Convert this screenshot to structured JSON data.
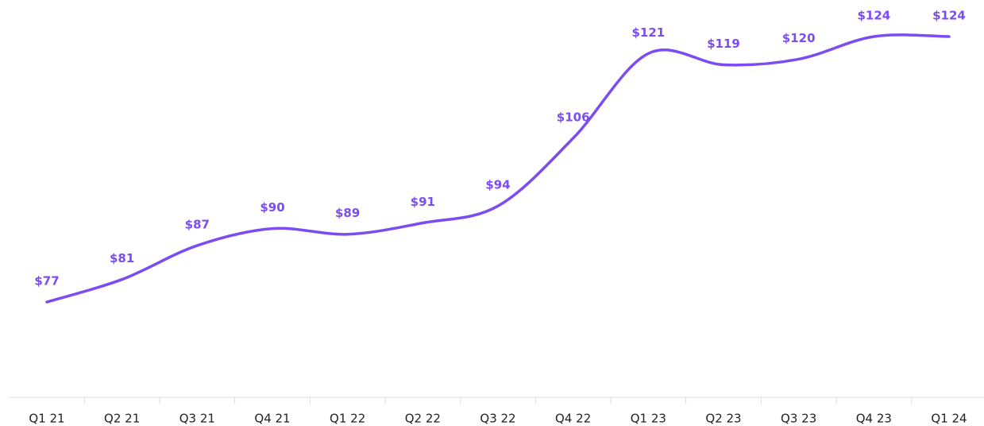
{
  "chart_data": {
    "type": "line",
    "categories": [
      "Q1 21",
      "Q2 21",
      "Q3 21",
      "Q4 21",
      "Q1 22",
      "Q2 22",
      "Q3 22",
      "Q4 22",
      "Q1 23",
      "Q2 23",
      "Q3 23",
      "Q4 23",
      "Q1 24"
    ],
    "values": [
      77,
      81,
      87,
      90,
      89,
      91,
      94,
      106,
      121,
      119,
      120,
      124,
      124
    ],
    "value_labels": [
      "$77",
      "$81",
      "$87",
      "$90",
      "$89",
      "$91",
      "$94",
      "$106",
      "$121",
      "$119",
      "$120",
      "$124",
      "$124"
    ],
    "color": "#7b4cf2"
  }
}
